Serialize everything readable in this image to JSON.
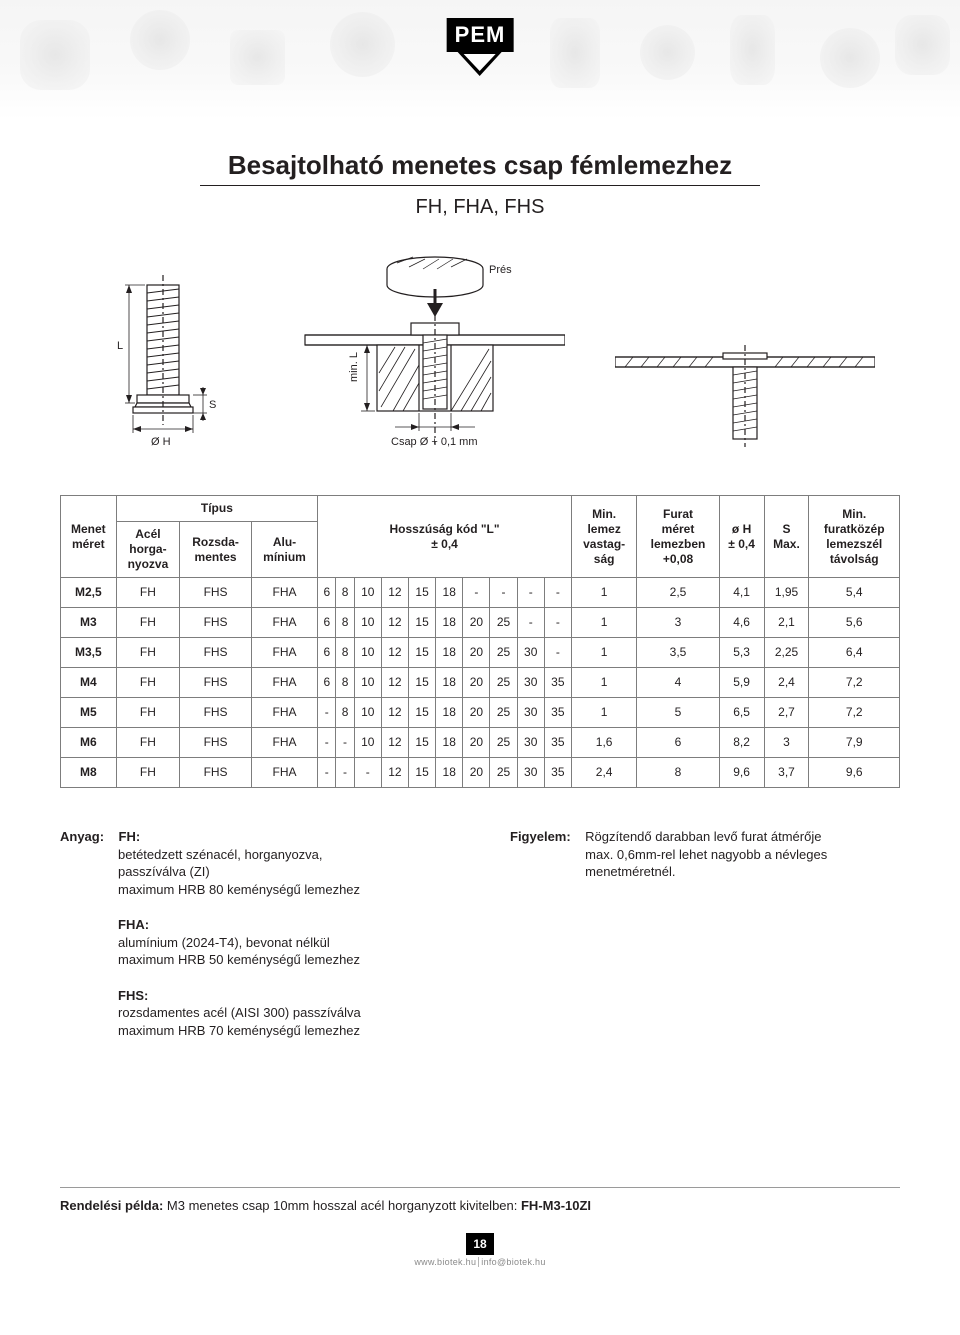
{
  "logo_text": "PEM",
  "title": "Besajtolható menetes csap fémlemezhez",
  "subtitle": "FH, FHA, FHS",
  "diagram_labels": {
    "pres": "Prés",
    "min_L": "min. L",
    "csap_d": "Csap Ø + 0,1 mm",
    "L": "L",
    "S": "S",
    "OH": "Ø H"
  },
  "diagram_colors": {
    "stroke": "#231f20",
    "hatch": "#6e6e6e",
    "fill_light": "#ffffff",
    "fill_grey": "#d9d9d9"
  },
  "table": {
    "columns": [
      {
        "key": "menet",
        "label": "Menet\nméret"
      },
      {
        "key": "tipus",
        "label": "Típus",
        "sub": [
          "Acél\nhorga-\nnyozva",
          "Rozsda-\nmentes",
          "Alu-\nmínium"
        ]
      },
      {
        "key": "hossz",
        "label": "Hosszúság kód \"L\"\n± 0,4",
        "span": 10
      },
      {
        "key": "minlemez",
        "label": "Min.\nlemez\nvastag-\nság"
      },
      {
        "key": "furat",
        "label": "Furat\nméret\nlemezben\n+0,08"
      },
      {
        "key": "oh",
        "label": "ø H\n± 0,4"
      },
      {
        "key": "s",
        "label": "S\nMax."
      },
      {
        "key": "minfurat",
        "label": "Min.\nfuratközép\nlemezszél\ntávolság"
      }
    ],
    "rows": [
      {
        "menet": "M2,5",
        "t": [
          "FH",
          "FHS",
          "FHA"
        ],
        "L": [
          "6",
          "8",
          "10",
          "12",
          "15",
          "18",
          "-",
          "-",
          "-",
          "-"
        ],
        "minlemez": "1",
        "furat": "2,5",
        "oh": "4,1",
        "s": "1,95",
        "minfurat": "5,4"
      },
      {
        "menet": "M3",
        "t": [
          "FH",
          "FHS",
          "FHA"
        ],
        "L": [
          "6",
          "8",
          "10",
          "12",
          "15",
          "18",
          "20",
          "25",
          "-",
          "-"
        ],
        "minlemez": "1",
        "furat": "3",
        "oh": "4,6",
        "s": "2,1",
        "minfurat": "5,6"
      },
      {
        "menet": "M3,5",
        "t": [
          "FH",
          "FHS",
          "FHA"
        ],
        "L": [
          "6",
          "8",
          "10",
          "12",
          "15",
          "18",
          "20",
          "25",
          "30",
          "-"
        ],
        "minlemez": "1",
        "furat": "3,5",
        "oh": "5,3",
        "s": "2,25",
        "minfurat": "6,4"
      },
      {
        "menet": "M4",
        "t": [
          "FH",
          "FHS",
          "FHA"
        ],
        "L": [
          "6",
          "8",
          "10",
          "12",
          "15",
          "18",
          "20",
          "25",
          "30",
          "35"
        ],
        "minlemez": "1",
        "furat": "4",
        "oh": "5,9",
        "s": "2,4",
        "minfurat": "7,2"
      },
      {
        "menet": "M5",
        "t": [
          "FH",
          "FHS",
          "FHA"
        ],
        "L": [
          "-",
          "8",
          "10",
          "12",
          "15",
          "18",
          "20",
          "25",
          "30",
          "35"
        ],
        "minlemez": "1",
        "furat": "5",
        "oh": "6,5",
        "s": "2,7",
        "minfurat": "7,2"
      },
      {
        "menet": "M6",
        "t": [
          "FH",
          "FHS",
          "FHA"
        ],
        "L": [
          "-",
          "-",
          "10",
          "12",
          "15",
          "18",
          "20",
          "25",
          "30",
          "35"
        ],
        "minlemez": "1,6",
        "furat": "6",
        "oh": "8,2",
        "s": "3",
        "minfurat": "7,9"
      },
      {
        "menet": "M8",
        "t": [
          "FH",
          "FHS",
          "FHA"
        ],
        "L": [
          "-",
          "-",
          "-",
          "12",
          "15",
          "18",
          "20",
          "25",
          "30",
          "35"
        ],
        "minlemez": "2,4",
        "furat": "8",
        "oh": "9,6",
        "s": "3,7",
        "minfurat": "9,6"
      }
    ]
  },
  "notes": {
    "anyag_label": "Anyag:",
    "fh_head": "FH:",
    "fh_body": "betétedzett szénacél, horganyozva,\npasszíválva (ZI)\nmaximum HRB 80 keménységű lemezhez",
    "fha_head": "FHA:",
    "fha_body": "alumínium (2024-T4), bevonat nélkül\nmaximum HRB 50 keménységű lemezhez",
    "fhs_head": "FHS:",
    "fhs_body": "rozsdamentes acél (AISI 300) passzíválva\nmaximum HRB 70 keménységű lemezhez",
    "figy_label": "Figyelem:",
    "figy_body": "Rögzítendő darabban levő furat átmérője\nmax. 0,6mm-rel lehet nagyobb a névleges\nmenetméretnél."
  },
  "order": {
    "label": "Rendelési példa:",
    "text": " M3 menetes csap 10mm hosszal acél horganyzott kivitelben: ",
    "code": "FH-M3-10ZI"
  },
  "page_number": "18",
  "footer": {
    "site": "www.biotek.hu",
    "email": "info@biotek.hu"
  }
}
